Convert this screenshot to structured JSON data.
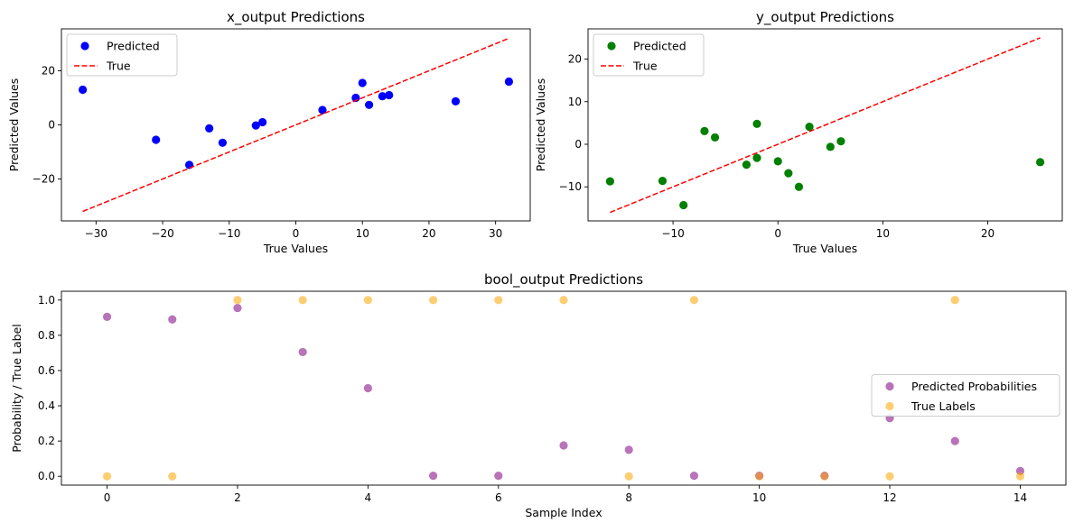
{
  "chart_data": [
    {
      "type": "scatter",
      "title": "x_output Predictions",
      "xlabel": "True Values",
      "ylabel": "Predicted Values",
      "xlim": [
        -35.2,
        35.2
      ],
      "ylim": [
        -35.5,
        35.5
      ],
      "xticks": [
        -30,
        -20,
        -10,
        0,
        10,
        20,
        30
      ],
      "xtick_labels": [
        "−30",
        "−20",
        "−10",
        "0",
        "10",
        "20",
        "30"
      ],
      "yticks": [
        -20,
        0,
        20
      ],
      "ytick_labels": [
        "−20",
        "0",
        "20"
      ],
      "legend_position": "top-left",
      "series": [
        {
          "name": "Predicted",
          "kind": "scatter",
          "color": "#0000ff",
          "x": [
            -32,
            -21,
            -16,
            -13,
            -11,
            -6,
            -5,
            4,
            9,
            10,
            11,
            13,
            14,
            24,
            32
          ],
          "y": [
            13,
            -5.5,
            -14.8,
            -1.3,
            -6.6,
            -0.2,
            1,
            5.5,
            10,
            15.5,
            7.4,
            10.6,
            11,
            8.7,
            16
          ]
        },
        {
          "name": "True",
          "kind": "line",
          "style": "dashed",
          "color": "#ff0000",
          "x": [
            -32,
            32
          ],
          "y": [
            -32,
            32
          ]
        }
      ]
    },
    {
      "type": "scatter",
      "title": "y_output Predictions",
      "xlabel": "True Values",
      "ylabel": "Predicted Values",
      "xlim": [
        -18.1,
        27.1
      ],
      "ylim": [
        -18.0,
        27.1
      ],
      "xticks": [
        -10,
        0,
        10,
        20
      ],
      "xtick_labels": [
        "−10",
        "0",
        "10",
        "20"
      ],
      "yticks": [
        -10,
        0,
        10,
        20
      ],
      "ytick_labels": [
        "−10",
        "0",
        "10",
        "20"
      ],
      "legend_position": "top-left",
      "series": [
        {
          "name": "Predicted",
          "kind": "scatter",
          "color": "#008000",
          "x": [
            -16,
            -11,
            -9,
            -7,
            -6,
            -3,
            -2,
            -2,
            0,
            1,
            2,
            3,
            5,
            6,
            25
          ],
          "y": [
            -8.7,
            -8.6,
            -14.3,
            3.1,
            1.6,
            -4.8,
            -3.2,
            4.8,
            -4,
            -6.8,
            -10,
            4.1,
            -0.6,
            0.7,
            -4.2
          ]
        },
        {
          "name": "True",
          "kind": "line",
          "style": "dashed",
          "color": "#ff0000",
          "x": [
            -16,
            25
          ],
          "y": [
            -16,
            25
          ]
        }
      ]
    },
    {
      "type": "scatter",
      "title": "bool_output Predictions",
      "xlabel": "Sample Index",
      "ylabel": "Probability / True Label",
      "xlim": [
        -0.7,
        14.7
      ],
      "ylim": [
        -0.05,
        1.05
      ],
      "xticks": [
        0,
        2,
        4,
        6,
        8,
        10,
        12,
        14
      ],
      "xtick_labels": [
        "0",
        "2",
        "4",
        "6",
        "8",
        "10",
        "12",
        "14"
      ],
      "yticks": [
        0,
        0.2,
        0.4,
        0.6,
        0.8,
        1.0
      ],
      "ytick_labels": [
        "0.0",
        "0.2",
        "0.4",
        "0.6",
        "0.8",
        "1.0"
      ],
      "legend_position": "center-right",
      "series": [
        {
          "name": "Predicted Probabilities",
          "kind": "scatter",
          "color": "#800080",
          "alpha": 0.55,
          "x": [
            0,
            1,
            2,
            3,
            4,
            5,
            6,
            7,
            8,
            9,
            10,
            11,
            12,
            13,
            14
          ],
          "y": [
            0.905,
            0.89,
            0.955,
            0.705,
            0.5,
            0.003,
            0.003,
            0.175,
            0.15,
            0.003,
            0.003,
            0.003,
            0.33,
            0.2,
            0.03
          ]
        },
        {
          "name": "True Labels",
          "kind": "scatter",
          "color": "#ffa500",
          "alpha": 0.55,
          "x": [
            0,
            1,
            2,
            3,
            4,
            5,
            6,
            7,
            8,
            9,
            10,
            11,
            12,
            13,
            14
          ],
          "y": [
            0,
            0,
            1,
            1,
            1,
            1,
            1,
            1,
            0,
            1,
            0,
            0,
            0,
            1,
            0
          ]
        }
      ]
    }
  ]
}
